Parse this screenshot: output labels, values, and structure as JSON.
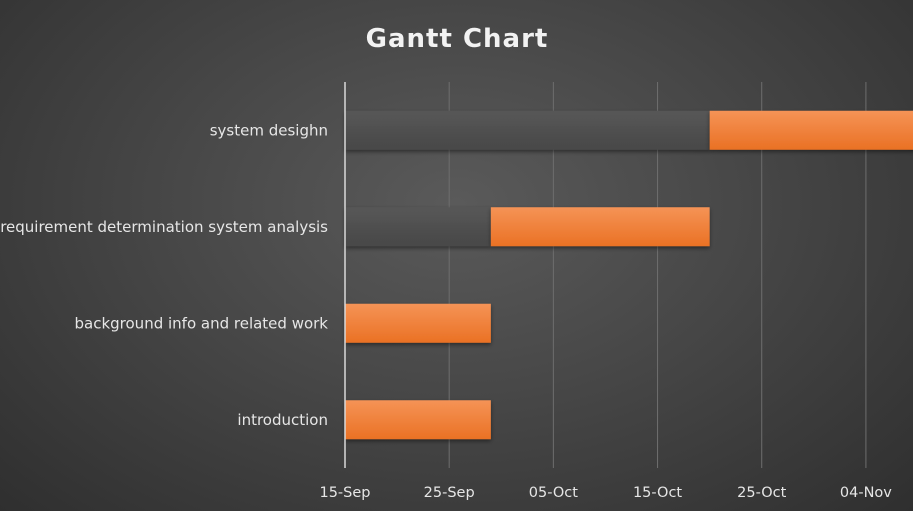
{
  "chart_data": {
    "type": "bar",
    "subtype": "gantt-stacked-horizontal",
    "title": "Gantt Chart",
    "xlabel": "",
    "ylabel": "",
    "x_axis_type": "date",
    "xlim": [
      "2017-09-15",
      "2017-11-09"
    ],
    "x_ticks": [
      "2017-09-15",
      "2017-09-25",
      "2017-10-05",
      "2017-10-15",
      "2017-10-25",
      "2017-11-04"
    ],
    "x_tick_labels": [
      "15-Sep",
      "25-Sep",
      "05-Oct",
      "15-Oct",
      "25-Oct",
      "04-Nov"
    ],
    "grid": true,
    "legend": "none",
    "categories": [
      "introduction",
      "background info and related work",
      "requirement determination system analysis",
      "system desighn"
    ],
    "tasks": [
      {
        "name": "introduction",
        "start": "2017-09-15",
        "end": "2017-09-29"
      },
      {
        "name": "background info and related work",
        "start": "2017-09-15",
        "end": "2017-09-29"
      },
      {
        "name": "requirement determination system analysis",
        "start": "2017-09-29",
        "end": "2017-10-20"
      },
      {
        "name": "system desighn",
        "start": "2017-10-20",
        "end": "2017-11-09"
      }
    ],
    "colors": {
      "duration_bar": "#ed7d31",
      "offset_bar": "#4f4f4f",
      "gridline": "#6e6e6e",
      "axis_line": "#d9d9d9",
      "text": "#e6e6e6"
    }
  }
}
